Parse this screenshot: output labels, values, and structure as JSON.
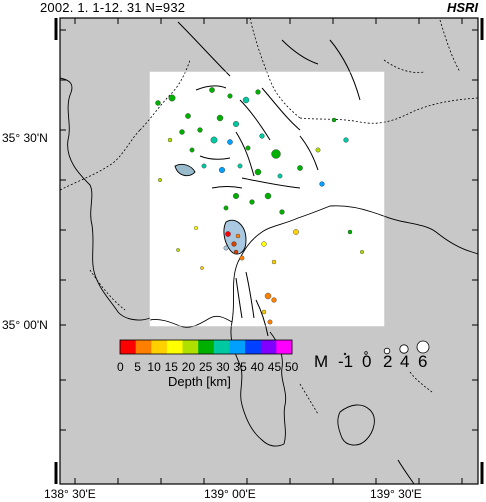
{
  "header": {
    "period": "2002. 1. 1-12. 31",
    "count": "N=932",
    "source": "HSRI"
  },
  "axes": {
    "lat_labels": [
      "35° 30'N",
      "35° 00'N"
    ],
    "lon_labels": [
      "138° 30'E",
      "139° 00'E",
      "139° 30'E"
    ]
  },
  "depth_legend": {
    "title": "Depth [km]",
    "ticks": [
      "0",
      "5",
      "10",
      "15",
      "20",
      "25",
      "30",
      "35",
      "40",
      "45",
      "50"
    ],
    "colors": [
      "#ff0000",
      "#ff7f00",
      "#ffd000",
      "#ffff00",
      "#b0e000",
      "#00b000",
      "#00c8a0",
      "#00a0ff",
      "#0040ff",
      "#8000ff",
      "#ff00ff"
    ]
  },
  "magnitude_legend": {
    "prefix": "M",
    "values": [
      "-1",
      "0",
      "2",
      "4",
      "6"
    ]
  },
  "colors": {
    "ocean": "#c8c8c8",
    "land": "#ffffff",
    "frame": "#000000"
  }
}
